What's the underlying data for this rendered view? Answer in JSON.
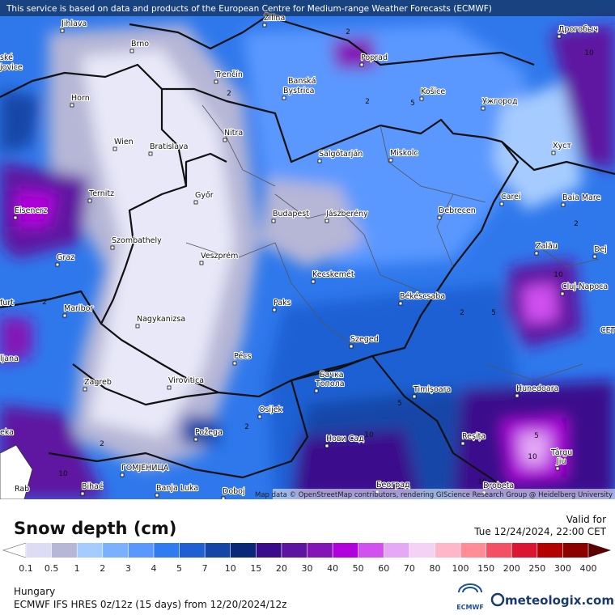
{
  "header": {
    "notice": "This service is based on data and products of the European Centre for Medium-range Weather Forecasts (ECMWF)"
  },
  "map": {
    "attribution": "Map data © OpenStreetMap contributors, rendering GIScience Research Group @ Heidelberg University",
    "cities": [
      {
        "label": "Jihlava"
      },
      {
        "label": "Brno"
      },
      {
        "label": "Žilina"
      },
      {
        "label": "Poprad"
      },
      {
        "label": "Дрогобыч"
      },
      {
        "label": "Trenčín"
      },
      {
        "label": "Banská"
      },
      {
        "label": "Bystrica"
      },
      {
        "label": "Košice"
      },
      {
        "label": "Ужгород"
      },
      {
        "label": "Horn"
      },
      {
        "label": "Nitra"
      },
      {
        "label": "Wien"
      },
      {
        "label": "Bratislava"
      },
      {
        "label": "Salgótarján"
      },
      {
        "label": "Miskolc"
      },
      {
        "label": "Хуст"
      },
      {
        "label": "Ternitz"
      },
      {
        "label": "Eisenerz"
      },
      {
        "label": "Győr"
      },
      {
        "label": "Budapest"
      },
      {
        "label": "Jászberény"
      },
      {
        "label": "Debrecen"
      },
      {
        "label": "Carei"
      },
      {
        "label": "Baia Mare"
      },
      {
        "label": "Szombathely"
      },
      {
        "label": "Graz"
      },
      {
        "label": "Veszprém"
      },
      {
        "label": "Zalău"
      },
      {
        "label": "Dej"
      },
      {
        "label": "Kecskemét"
      },
      {
        "label": "Cluj-Napoca"
      },
      {
        "label": "Békéscsaba"
      },
      {
        "label": "Paks"
      },
      {
        "label": "Maribor"
      },
      {
        "label": "Nagykanizsa"
      },
      {
        "label": "Szeged"
      },
      {
        "label": "Pécs"
      },
      {
        "label": "Zagreb"
      },
      {
        "label": "Virovitica"
      },
      {
        "label": "Бачка"
      },
      {
        "label": "Топола"
      },
      {
        "label": "Timișoara"
      },
      {
        "label": "Hunedoara"
      },
      {
        "label": "Osijek"
      },
      {
        "label": "Požega"
      },
      {
        "label": "Нови Сад"
      },
      {
        "label": "Reșița"
      },
      {
        "label": "Târgu"
      },
      {
        "label": "Jiu"
      },
      {
        "label": "ГОМЈЕНИЦА"
      },
      {
        "label": "Bihać"
      },
      {
        "label": "Banja Luka"
      },
      {
        "label": "Doboj"
      },
      {
        "label": "Београд"
      },
      {
        "label": "Drobeta"
      },
      {
        "label": "ské"
      },
      {
        "label": "jovice"
      },
      {
        "label": "furt"
      },
      {
        "label": "ljana"
      },
      {
        "label": "eka"
      },
      {
        "label": "Rab"
      },
      {
        "label": "CET"
      }
    ],
    "contour_labels": [
      2,
      2,
      2,
      2,
      2,
      2,
      2,
      2,
      5,
      5,
      5,
      5,
      10,
      10,
      10,
      10,
      10,
      10
    ]
  },
  "legend": {
    "title": "Snow depth (cm)",
    "valid_label": "Valid for",
    "valid_time": "Tue 12/24/2024, 22:00 CET",
    "ticks": [
      0.1,
      0.5,
      1,
      2,
      3,
      4,
      5,
      7,
      10,
      15,
      20,
      30,
      40,
      50,
      60,
      70,
      80,
      100,
      150,
      200,
      250,
      300,
      400
    ],
    "colors": [
      "#dcdcf7",
      "#b6b6d6",
      "#a6ccff",
      "#7ab0ff",
      "#5a98ff",
      "#2f7cf2",
      "#1e60d4",
      "#1446a8",
      "#0a2878",
      "#3a0c8c",
      "#5e14a0",
      "#8414b6",
      "#b000dc",
      "#d050f0",
      "#e4a8f6",
      "#f4d2f6",
      "#ffb6c8",
      "#ff8c96",
      "#f45064",
      "#dc1432",
      "#b40000",
      "#8c0000"
    ],
    "under_color": "#ffffff",
    "over_color": "#5a0000"
  },
  "footer": {
    "region": "Hungary",
    "model": "ECMWF IFS HRES 0z/12z (15 days) from 12/20/2024/12z",
    "logo_ecmwf": "ECMWF",
    "logo_site": "meteologix.com"
  }
}
